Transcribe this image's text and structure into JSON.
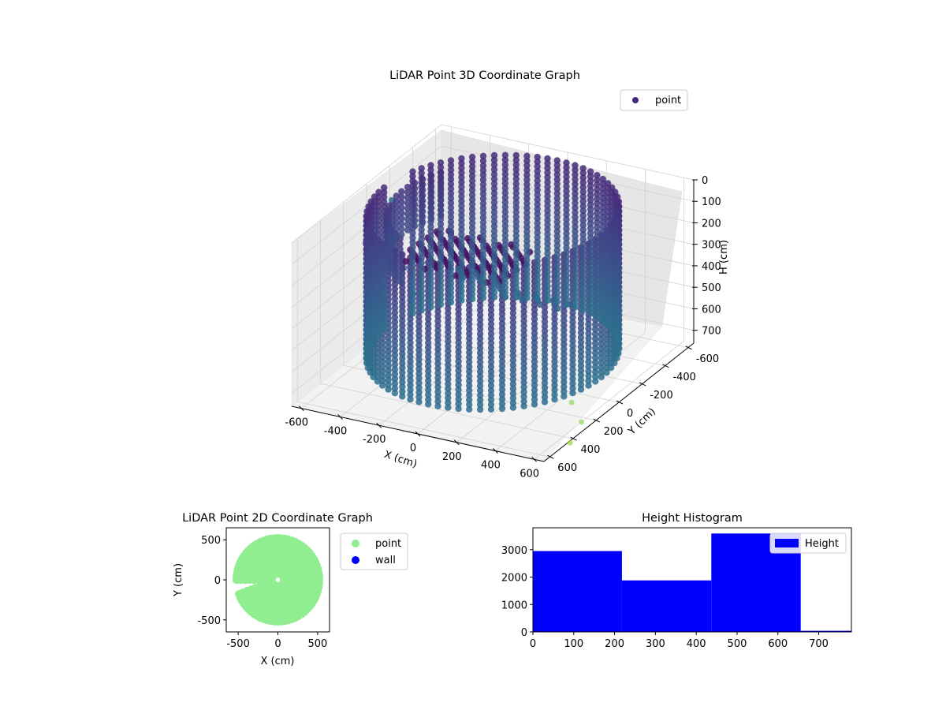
{
  "chart_data": [
    {
      "type": "scatter3d",
      "title": "LiDAR Point 3D Coordinate Graph",
      "xlabel": "X (cm)",
      "ylabel": "Y (cm)",
      "zlabel": "H (cm)",
      "xlim": [
        -650,
        650
      ],
      "ylim": [
        -650,
        650
      ],
      "zlim": [
        0,
        760
      ],
      "z_inverted": true,
      "x_ticks": [
        "-600",
        "-400",
        "-200",
        "0",
        "200",
        "400",
        "600"
      ],
      "y_ticks": [
        "-600",
        "-400",
        "-200",
        "0",
        "200",
        "400",
        "600"
      ],
      "z_ticks": [
        "0",
        "100",
        "200",
        "300",
        "400",
        "500",
        "600",
        "700"
      ],
      "colormap": "viridis",
      "legend": {
        "entries": [
          "point"
        ],
        "placement": "upper-right",
        "color": "#46287a"
      },
      "grid": true,
      "wall": {
        "radius": 560,
        "arc_deg": [
          200,
          540
        ],
        "h_range": [
          0,
          660
        ]
      },
      "roof": {
        "radius": 470,
        "arc_deg": [
          120,
          210
        ],
        "h_range": [
          0,
          220
        ]
      },
      "outliers": [
        {
          "x": -470,
          "y": 90,
          "h": 0,
          "color": "#3b8b9b"
        },
        {
          "x": -420,
          "y": 400,
          "h": 60,
          "color": "#38588c"
        },
        {
          "x": -120,
          "y": 560,
          "h": 50,
          "color": "#2a788e"
        },
        {
          "x": -50,
          "y": 600,
          "h": 140,
          "color": "#3b8b9b"
        },
        {
          "x": -250,
          "y": 470,
          "h": 60,
          "color": "#dde86a"
        },
        {
          "x": 460,
          "y": 90,
          "h": 760,
          "color": "#93d868"
        },
        {
          "x": 600,
          "y": 240,
          "h": 760,
          "color": "#93d868"
        },
        {
          "x": 660,
          "y": 440,
          "h": 760,
          "color": "#a0da39"
        }
      ]
    },
    {
      "type": "scatter",
      "title": "LiDAR Point 2D Coordinate Graph",
      "xlabel": "X (cm)",
      "ylabel": "Y (cm)",
      "xlim": [
        -650,
        650
      ],
      "ylim": [
        -650,
        650
      ],
      "x_ticks": [
        "-500",
        "0",
        "500"
      ],
      "y_ticks": [
        "-500",
        "0",
        "500"
      ],
      "legend": {
        "placement": "outside-right"
      },
      "series": [
        {
          "name": "point",
          "color": "#90ee90",
          "radius": 560,
          "arc_deg": [
            200,
            540
          ]
        },
        {
          "name": "wall",
          "color": "#0000ff",
          "points": []
        }
      ]
    },
    {
      "type": "bar",
      "title": "Height Histogram",
      "xlim": [
        0,
        780
      ],
      "ylim": [
        0,
        3800
      ],
      "x_ticks": [
        "0",
        "100",
        "200",
        "300",
        "400",
        "500",
        "600",
        "700"
      ],
      "y_ticks": [
        "0",
        "1000",
        "2000",
        "3000"
      ],
      "bins": [
        {
          "start": 0,
          "end": 218,
          "count": 2950
        },
        {
          "start": 218,
          "end": 437,
          "count": 1880
        },
        {
          "start": 437,
          "end": 656,
          "count": 3590
        },
        {
          "start": 656,
          "end": 875,
          "count": 40
        }
      ],
      "color": "#0000ff",
      "legend": {
        "entries": [
          "Height"
        ],
        "placement": "upper-right"
      }
    }
  ]
}
